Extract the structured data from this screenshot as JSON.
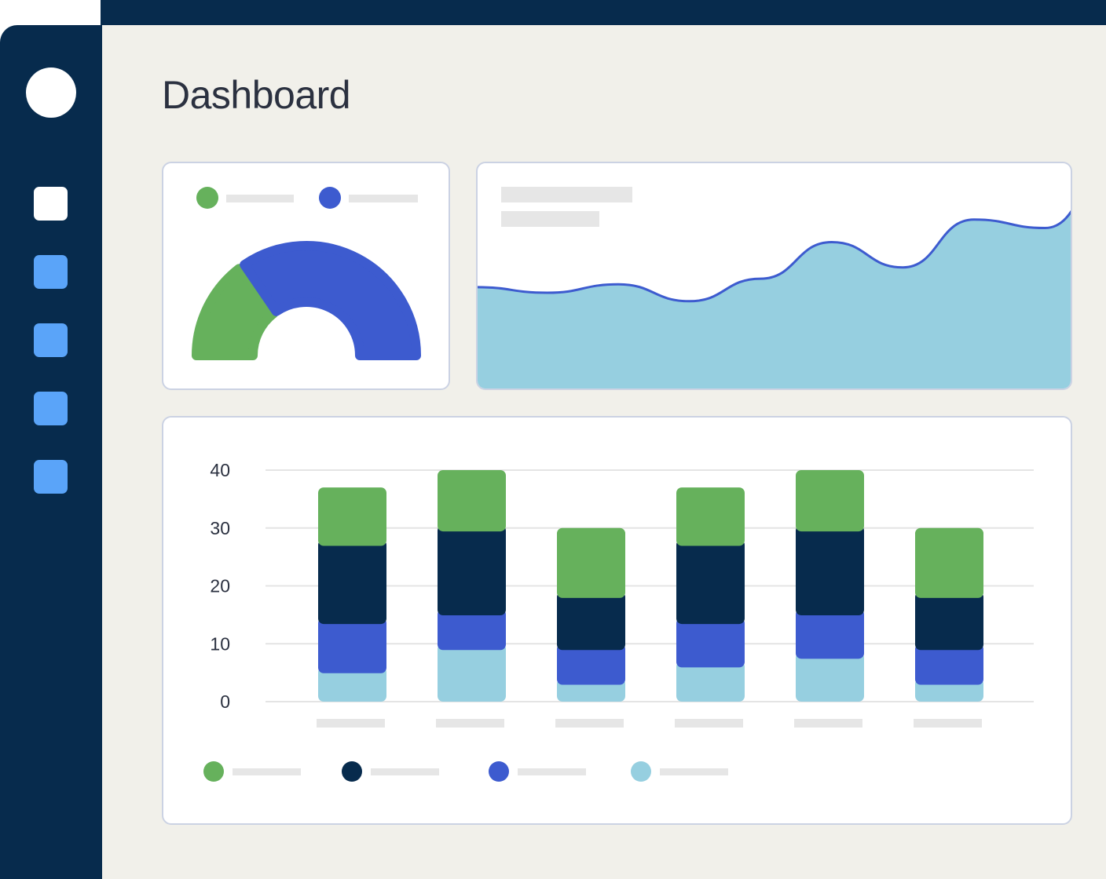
{
  "header": {
    "title": "Dashboard"
  },
  "sidebar": {
    "items": [
      {
        "name": "nav-item-1",
        "active": true
      },
      {
        "name": "nav-item-2",
        "active": false
      },
      {
        "name": "nav-item-3",
        "active": false
      },
      {
        "name": "nav-item-4",
        "active": false
      },
      {
        "name": "nav-item-5",
        "active": false
      }
    ]
  },
  "colors": {
    "navy": "#072b4d",
    "green": "#66b15c",
    "blue": "#3d5bcf",
    "lightblue": "#96cfe0",
    "nav_item": "#5aa4f9",
    "background": "#f1f0ea"
  },
  "chart_data": [
    {
      "type": "pie",
      "variant": "semi-donut",
      "legend_placement": "top",
      "slices": [
        {
          "color": "#66b15c",
          "fraction": 0.3
        },
        {
          "color": "#3d5bcf",
          "fraction": 0.7
        }
      ]
    },
    {
      "type": "area",
      "legend_placement": "top-left",
      "values": [
        36,
        34,
        37,
        31,
        39,
        52,
        43,
        60,
        57,
        80
      ]
    },
    {
      "type": "bar",
      "stacked": true,
      "legend_placement": "bottom-left",
      "grid": true,
      "ylim": [
        0,
        40
      ],
      "y_ticks": [
        "0",
        "10",
        "20",
        "30",
        "40"
      ],
      "series": [
        {
          "color": "#96cfe0",
          "values": [
            6,
            10,
            4,
            7,
            8.5,
            4
          ]
        },
        {
          "color": "#3d5bcf",
          "values": [
            8.5,
            6,
            6,
            7.5,
            7.5,
            6
          ]
        },
        {
          "color": "#072b4d",
          "values": [
            13.5,
            14.5,
            9,
            13.5,
            14.5,
            9
          ]
        },
        {
          "color": "#66b15c",
          "values": [
            9,
            9.5,
            11,
            9,
            9.5,
            11
          ]
        }
      ]
    }
  ]
}
